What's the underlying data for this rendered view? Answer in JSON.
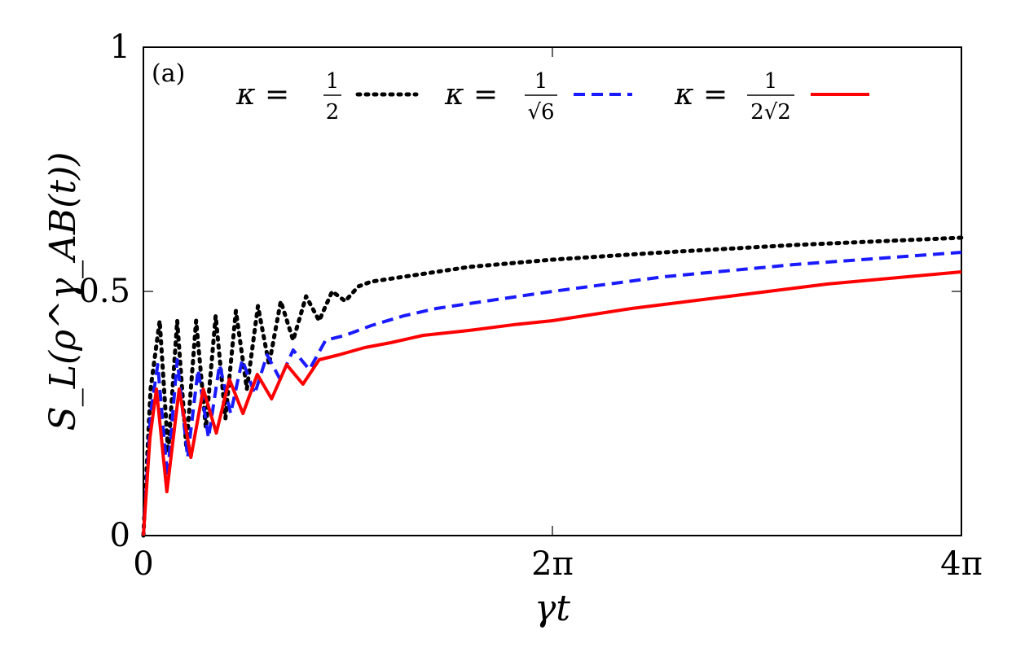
{
  "chart_data": {
    "type": "line",
    "panel_label": "(a)",
    "xlabel": "γt",
    "ylabel": "S_L(ρ^γ_AB(t))",
    "xlim": [
      0,
      12.566
    ],
    "ylim": [
      0,
      1
    ],
    "x_ticks": [
      {
        "value": 0,
        "label": "0"
      },
      {
        "value": 6.283,
        "label": "2π"
      },
      {
        "value": 12.566,
        "label": "4π"
      }
    ],
    "y_ticks": [
      {
        "value": 0,
        "label": "0"
      },
      {
        "value": 0.5,
        "label": "0.5"
      },
      {
        "value": 1,
        "label": "1"
      }
    ],
    "grid": false,
    "legend_position": "top",
    "series": [
      {
        "name": "κ = 1/2",
        "kappa_display": {
          "lhs": "κ =",
          "num": "1",
          "den": "2"
        },
        "color": "#000000",
        "style": "dotted",
        "points": [
          [
            0,
            0
          ],
          [
            0.11,
            0.3
          ],
          [
            0.25,
            0.44
          ],
          [
            0.38,
            0.17
          ],
          [
            0.52,
            0.44
          ],
          [
            0.66,
            0.18
          ],
          [
            0.81,
            0.44
          ],
          [
            0.96,
            0.22
          ],
          [
            1.11,
            0.45
          ],
          [
            1.26,
            0.24
          ],
          [
            1.42,
            0.46
          ],
          [
            1.59,
            0.3
          ],
          [
            1.76,
            0.47
          ],
          [
            1.93,
            0.35
          ],
          [
            2.11,
            0.48
          ],
          [
            2.3,
            0.4
          ],
          [
            2.5,
            0.49
          ],
          [
            2.7,
            0.44
          ],
          [
            2.9,
            0.5
          ],
          [
            3.1,
            0.48
          ],
          [
            3.3,
            0.51
          ],
          [
            3.5,
            0.52
          ],
          [
            4.0,
            0.53
          ],
          [
            5.0,
            0.55
          ],
          [
            6.283,
            0.565
          ],
          [
            8.0,
            0.58
          ],
          [
            10.0,
            0.595
          ],
          [
            12.566,
            0.61
          ]
        ]
      },
      {
        "name": "κ = 1/√6",
        "kappa_display": {
          "lhs": "κ =",
          "num": "1",
          "den": "√6"
        },
        "color": "#1a1aff",
        "style": "dashed",
        "points": [
          [
            0,
            0
          ],
          [
            0.11,
            0.25
          ],
          [
            0.22,
            0.35
          ],
          [
            0.37,
            0.12
          ],
          [
            0.52,
            0.36
          ],
          [
            0.68,
            0.16
          ],
          [
            0.84,
            0.34
          ],
          [
            1.0,
            0.2
          ],
          [
            1.17,
            0.35
          ],
          [
            1.34,
            0.25
          ],
          [
            1.52,
            0.36
          ],
          [
            1.71,
            0.29
          ],
          [
            1.9,
            0.37
          ],
          [
            2.1,
            0.32
          ],
          [
            2.3,
            0.38
          ],
          [
            2.55,
            0.34
          ],
          [
            2.8,
            0.4
          ],
          [
            3.1,
            0.41
          ],
          [
            3.5,
            0.43
          ],
          [
            4.0,
            0.45
          ],
          [
            4.5,
            0.465
          ],
          [
            5.0,
            0.475
          ],
          [
            6.283,
            0.5
          ],
          [
            8.0,
            0.53
          ],
          [
            10.0,
            0.555
          ],
          [
            12.566,
            0.58
          ]
        ]
      },
      {
        "name": "κ = 1/(2√2)",
        "kappa_display": {
          "lhs": "κ =",
          "num": "1",
          "den": "2√2"
        },
        "color": "#ff0000",
        "style": "solid",
        "points": [
          [
            0,
            0
          ],
          [
            0.1,
            0.2
          ],
          [
            0.2,
            0.3
          ],
          [
            0.36,
            0.09
          ],
          [
            0.55,
            0.3
          ],
          [
            0.73,
            0.16
          ],
          [
            0.92,
            0.3
          ],
          [
            1.12,
            0.21
          ],
          [
            1.32,
            0.32
          ],
          [
            1.53,
            0.25
          ],
          [
            1.75,
            0.33
          ],
          [
            1.97,
            0.28
          ],
          [
            2.2,
            0.35
          ],
          [
            2.45,
            0.31
          ],
          [
            2.7,
            0.36
          ],
          [
            3.0,
            0.37
          ],
          [
            3.4,
            0.385
          ],
          [
            3.8,
            0.395
          ],
          [
            4.3,
            0.41
          ],
          [
            5.0,
            0.42
          ],
          [
            5.7,
            0.432
          ],
          [
            6.283,
            0.44
          ],
          [
            7.5,
            0.465
          ],
          [
            9.0,
            0.49
          ],
          [
            10.5,
            0.515
          ],
          [
            12.566,
            0.54
          ]
        ]
      }
    ]
  }
}
